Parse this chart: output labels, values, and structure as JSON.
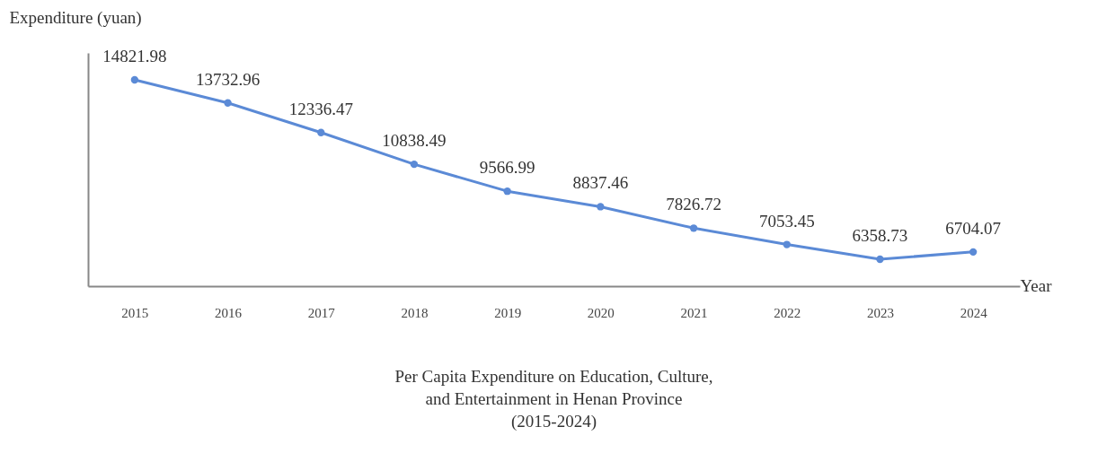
{
  "chart_data": {
    "type": "line",
    "title": "Per Capita Expenditure on Education, Culture, and Entertainment in Henan Province (2015-2024)",
    "xlabel": "Year",
    "ylabel": "Expenditure (yuan)",
    "categories": [
      "2015",
      "2016",
      "2017",
      "2018",
      "2019",
      "2020",
      "2021",
      "2022",
      "2023",
      "2024"
    ],
    "series": [
      {
        "color": "#5b8ad6",
        "values": [
          14821.98,
          13732.96,
          12336.47,
          10838.49,
          9566.99,
          8837.46,
          7826.72,
          7053.45,
          6358.73,
          6704.07
        ]
      }
    ],
    "data_labels": true,
    "marker": "circle",
    "grid": false,
    "legend": false,
    "tick_labels": "x"
  }
}
